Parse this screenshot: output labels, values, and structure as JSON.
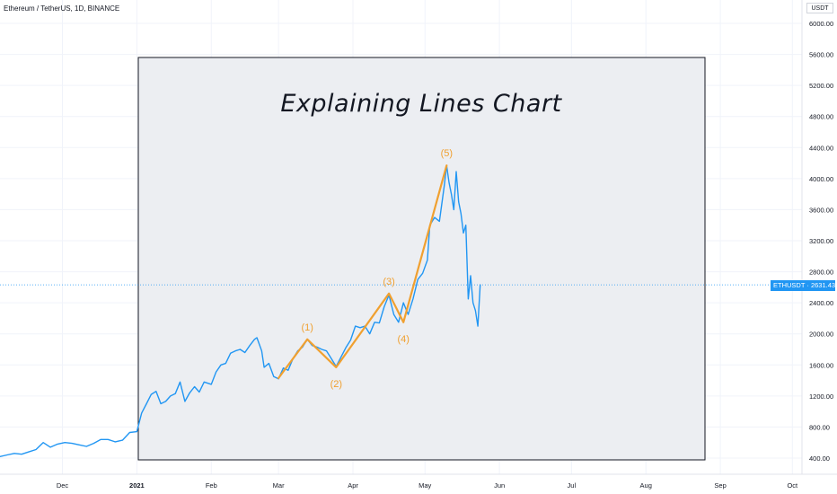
{
  "header": {
    "symbol_title": "Ethereum / TetherUS, 1D, BINANCE",
    "unit_label": "USDT"
  },
  "price_tag": {
    "ticker": "ETHUSDT",
    "value": "2631.43",
    "color": "#2196f3"
  },
  "annotation": {
    "title": "Explaining Lines Chart",
    "box_fill": "#eceef2",
    "box_stroke": "#131722"
  },
  "chart_data": {
    "type": "line",
    "title": "",
    "xlabel": "",
    "ylabel": "",
    "ylim": [
      300,
      6250
    ],
    "xlim": [
      "2020-11-05",
      "2021-10-05"
    ],
    "grid": true,
    "y_ticks": [
      "400.00",
      "800.00",
      "1200.00",
      "1600.00",
      "2000.00",
      "2400.00",
      "2800.00",
      "3200.00",
      "3600.00",
      "4000.00",
      "4400.00",
      "4800.00",
      "5200.00",
      "5600.00",
      "6000.00"
    ],
    "x_ticks": [
      {
        "label": "Dec",
        "date": "2020-12-01"
      },
      {
        "label": "2021",
        "date": "2021-01-01"
      },
      {
        "label": "Feb",
        "date": "2021-02-01"
      },
      {
        "label": "Mar",
        "date": "2021-03-01"
      },
      {
        "label": "Apr",
        "date": "2021-04-01"
      },
      {
        "label": "May",
        "date": "2021-05-01"
      },
      {
        "label": "Jun",
        "date": "2021-06-01"
      },
      {
        "label": "Jul",
        "date": "2021-07-01"
      },
      {
        "label": "Aug",
        "date": "2021-08-01"
      },
      {
        "label": "Sep",
        "date": "2021-09-01"
      },
      {
        "label": "Oct",
        "date": "2021-10-01"
      }
    ],
    "current_price": 2631.43,
    "series": [
      {
        "color": "#2196f3",
        "points": [
          [
            "2020-11-05",
            420
          ],
          [
            "2020-11-08",
            440
          ],
          [
            "2020-11-11",
            460
          ],
          [
            "2020-11-14",
            450
          ],
          [
            "2020-11-17",
            480
          ],
          [
            "2020-11-20",
            510
          ],
          [
            "2020-11-23",
            600
          ],
          [
            "2020-11-26",
            540
          ],
          [
            "2020-11-29",
            580
          ],
          [
            "2020-12-02",
            600
          ],
          [
            "2020-12-05",
            590
          ],
          [
            "2020-12-08",
            570
          ],
          [
            "2020-12-11",
            550
          ],
          [
            "2020-12-14",
            590
          ],
          [
            "2020-12-17",
            640
          ],
          [
            "2020-12-20",
            640
          ],
          [
            "2020-12-23",
            610
          ],
          [
            "2020-12-26",
            630
          ],
          [
            "2020-12-29",
            730
          ],
          [
            "2021-01-01",
            740
          ],
          [
            "2021-01-03",
            980
          ],
          [
            "2021-01-05",
            1100
          ],
          [
            "2021-01-07",
            1220
          ],
          [
            "2021-01-09",
            1260
          ],
          [
            "2021-01-11",
            1100
          ],
          [
            "2021-01-13",
            1130
          ],
          [
            "2021-01-15",
            1200
          ],
          [
            "2021-01-17",
            1230
          ],
          [
            "2021-01-19",
            1380
          ],
          [
            "2021-01-21",
            1130
          ],
          [
            "2021-01-23",
            1240
          ],
          [
            "2021-01-25",
            1320
          ],
          [
            "2021-01-27",
            1250
          ],
          [
            "2021-01-29",
            1380
          ],
          [
            "2021-02-01",
            1350
          ],
          [
            "2021-02-03",
            1510
          ],
          [
            "2021-02-05",
            1600
          ],
          [
            "2021-02-07",
            1620
          ],
          [
            "2021-02-09",
            1750
          ],
          [
            "2021-02-11",
            1780
          ],
          [
            "2021-02-13",
            1800
          ],
          [
            "2021-02-15",
            1760
          ],
          [
            "2021-02-17",
            1850
          ],
          [
            "2021-02-19",
            1930
          ],
          [
            "2021-02-20",
            1950
          ],
          [
            "2021-02-22",
            1780
          ],
          [
            "2021-02-23",
            1570
          ],
          [
            "2021-02-25",
            1620
          ],
          [
            "2021-02-27",
            1450
          ],
          [
            "2021-03-01",
            1420
          ],
          [
            "2021-03-03",
            1560
          ],
          [
            "2021-03-05",
            1530
          ],
          [
            "2021-03-07",
            1680
          ],
          [
            "2021-03-09",
            1780
          ],
          [
            "2021-03-11",
            1830
          ],
          [
            "2021-03-13",
            1930
          ],
          [
            "2021-03-15",
            1850
          ],
          [
            "2021-03-17",
            1830
          ],
          [
            "2021-03-19",
            1800
          ],
          [
            "2021-03-21",
            1780
          ],
          [
            "2021-03-23",
            1680
          ],
          [
            "2021-03-25",
            1580
          ],
          [
            "2021-03-27",
            1700
          ],
          [
            "2021-03-29",
            1820
          ],
          [
            "2021-03-31",
            1920
          ],
          [
            "2021-04-02",
            2100
          ],
          [
            "2021-04-04",
            2080
          ],
          [
            "2021-04-06",
            2100
          ],
          [
            "2021-04-08",
            2000
          ],
          [
            "2021-04-10",
            2150
          ],
          [
            "2021-04-12",
            2140
          ],
          [
            "2021-04-14",
            2350
          ],
          [
            "2021-04-16",
            2500
          ],
          [
            "2021-04-18",
            2250
          ],
          [
            "2021-04-20",
            2150
          ],
          [
            "2021-04-22",
            2400
          ],
          [
            "2021-04-24",
            2250
          ],
          [
            "2021-04-26",
            2450
          ],
          [
            "2021-04-28",
            2700
          ],
          [
            "2021-04-30",
            2780
          ],
          [
            "2021-05-02",
            2950
          ],
          [
            "2021-05-03",
            3400
          ],
          [
            "2021-05-05",
            3500
          ],
          [
            "2021-05-07",
            3450
          ],
          [
            "2021-05-09",
            3900
          ],
          [
            "2021-05-10",
            4170
          ],
          [
            "2021-05-11",
            3950
          ],
          [
            "2021-05-12",
            3800
          ],
          [
            "2021-05-13",
            3600
          ],
          [
            "2021-05-14",
            4090
          ],
          [
            "2021-05-15",
            3700
          ],
          [
            "2021-05-16",
            3550
          ],
          [
            "2021-05-17",
            3300
          ],
          [
            "2021-05-18",
            3400
          ],
          [
            "2021-05-19",
            2450
          ],
          [
            "2021-05-20",
            2750
          ],
          [
            "2021-05-21",
            2400
          ],
          [
            "2021-05-22",
            2300
          ],
          [
            "2021-05-23",
            2100
          ],
          [
            "2021-05-24",
            2631.43
          ]
        ]
      },
      {
        "color": "#f0a030",
        "points": [
          [
            "2021-03-01",
            1430
          ],
          [
            "2021-03-13",
            1930
          ],
          [
            "2021-03-25",
            1570
          ],
          [
            "2021-04-16",
            2520
          ],
          [
            "2021-04-22",
            2150
          ],
          [
            "2021-05-10",
            4170
          ]
        ]
      }
    ],
    "wave_labels": [
      {
        "label": "(1)",
        "date": "2021-03-13",
        "value": 1930,
        "position": "above"
      },
      {
        "label": "(2)",
        "date": "2021-03-25",
        "value": 1570,
        "position": "below"
      },
      {
        "label": "(3)",
        "date": "2021-04-16",
        "value": 2520,
        "position": "above"
      },
      {
        "label": "(4)",
        "date": "2021-04-22",
        "value": 2150,
        "position": "below"
      },
      {
        "label": "(5)",
        "date": "2021-05-10",
        "value": 4170,
        "position": "above"
      }
    ]
  }
}
